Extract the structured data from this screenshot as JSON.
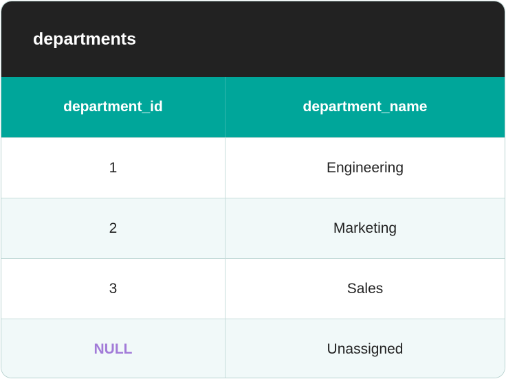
{
  "header": {
    "title": "departments"
  },
  "table": {
    "columns": [
      "department_id",
      "department_name"
    ],
    "rows": [
      [
        1,
        "Engineering"
      ],
      [
        2,
        "Marketing"
      ],
      [
        3,
        "Sales"
      ],
      [
        "NULL",
        "Unassigned"
      ]
    ]
  }
}
